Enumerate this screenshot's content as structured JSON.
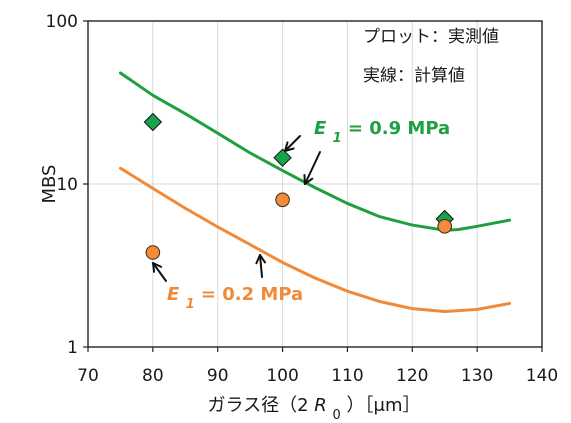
{
  "colors": {
    "green": "#1f9f3f",
    "orange": "#f08a38",
    "green_marker": "#16a34a",
    "orange_marker": "#f28b3a",
    "grid": "#d9d9d9",
    "axis": "#222222",
    "text": "#1a1a1a"
  },
  "chart_data": {
    "type": "scatter",
    "title": "",
    "xlabel_main": "ガラス径（2",
    "xlabel_var": "R",
    "xlabel_sub": "0",
    "xlabel_tail": "）［μm］",
    "ylabel": "MBS",
    "xlim": [
      70,
      140
    ],
    "ylim": [
      1,
      100
    ],
    "yscale": "log",
    "x_ticks": [
      70,
      80,
      90,
      100,
      110,
      120,
      130,
      140
    ],
    "y_ticks": [
      1,
      10,
      100
    ],
    "grid": true,
    "notes": [
      "プロット：実測値",
      "実線：計算値"
    ],
    "series": [
      {
        "name": "E1 = 0.9 MPa",
        "label_prefix": "E",
        "label_sub": "1",
        "label_value": " = 0.9 MPa",
        "color": "#1f9f3f",
        "marker_color": "#16a34a",
        "marker": "diamond",
        "measured": {
          "x": [
            80,
            100,
            125
          ],
          "y": [
            24,
            14.5,
            6.1
          ]
        },
        "calculated": {
          "x": [
            75,
            80,
            85,
            90,
            95,
            100,
            105,
            110,
            115,
            120,
            125,
            127,
            130,
            135
          ],
          "y": [
            48,
            35,
            27,
            20.5,
            15.5,
            12.1,
            9.5,
            7.6,
            6.3,
            5.6,
            5.2,
            5.25,
            5.5,
            6.0
          ]
        }
      },
      {
        "name": "E1 = 0.2 MPa",
        "label_prefix": "E",
        "label_sub": "1",
        "label_value": " = 0.2 MPa",
        "color": "#f08a38",
        "marker_color": "#f28b3a",
        "marker": "circle",
        "measured": {
          "x": [
            80,
            100,
            125
          ],
          "y": [
            3.8,
            8.0,
            5.5
          ]
        },
        "calculated": {
          "x": [
            75,
            80,
            85,
            90,
            95,
            100,
            105,
            110,
            115,
            120,
            125,
            130,
            135
          ],
          "y": [
            12.5,
            9.4,
            7.1,
            5.45,
            4.25,
            3.3,
            2.65,
            2.2,
            1.9,
            1.72,
            1.65,
            1.7,
            1.85
          ]
        }
      }
    ]
  }
}
